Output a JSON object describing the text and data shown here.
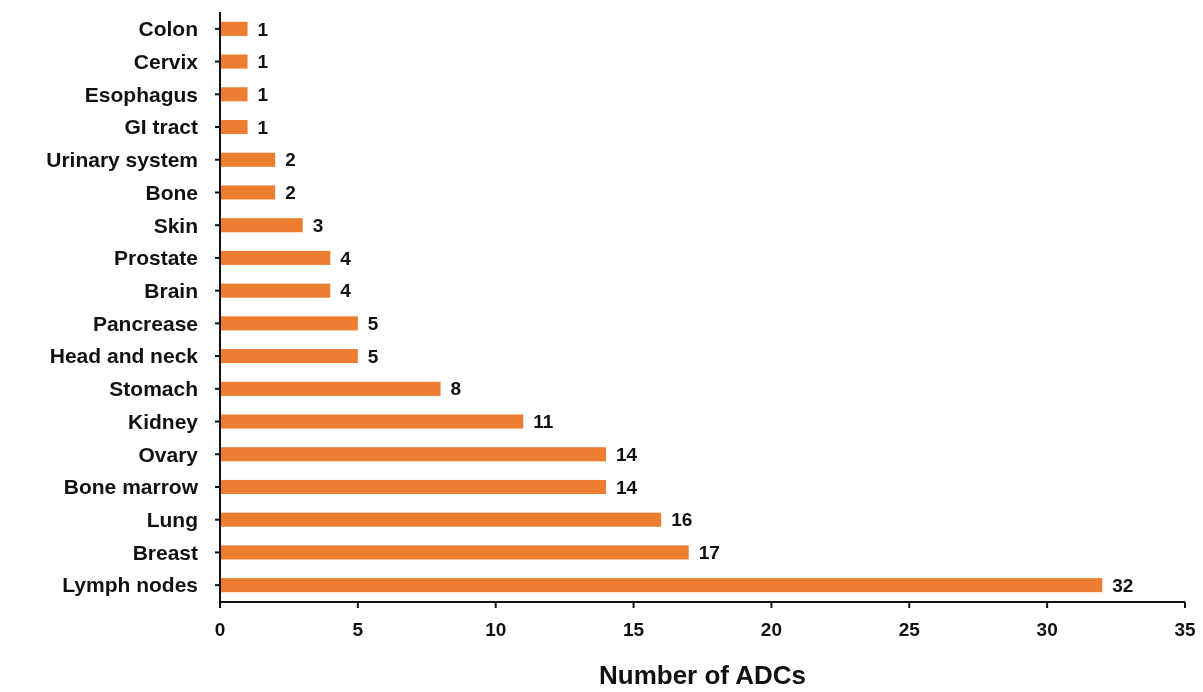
{
  "chart_data": {
    "type": "bar",
    "orientation": "horizontal",
    "xlabel": "Number of ADCs",
    "categories": [
      "Colon",
      "Cervix",
      "Esophagus",
      "GI tract",
      "Urinary system",
      "Bone",
      "Skin",
      "Prostate",
      "Brain",
      "Pancrease",
      "Head and neck",
      "Stomach",
      "Kidney",
      "Ovary",
      "Bone marrow",
      "Lung",
      "Breast",
      "Lymph nodes"
    ],
    "values": [
      1,
      1,
      1,
      1,
      2,
      2,
      3,
      4,
      4,
      5,
      5,
      8,
      11,
      14,
      14,
      16,
      17,
      32
    ],
    "color": "#ed7d31",
    "xlim": [
      0,
      35
    ],
    "xticks": [
      0,
      5,
      10,
      15,
      20,
      25,
      30,
      35
    ],
    "grid": false,
    "data_labels": true
  }
}
